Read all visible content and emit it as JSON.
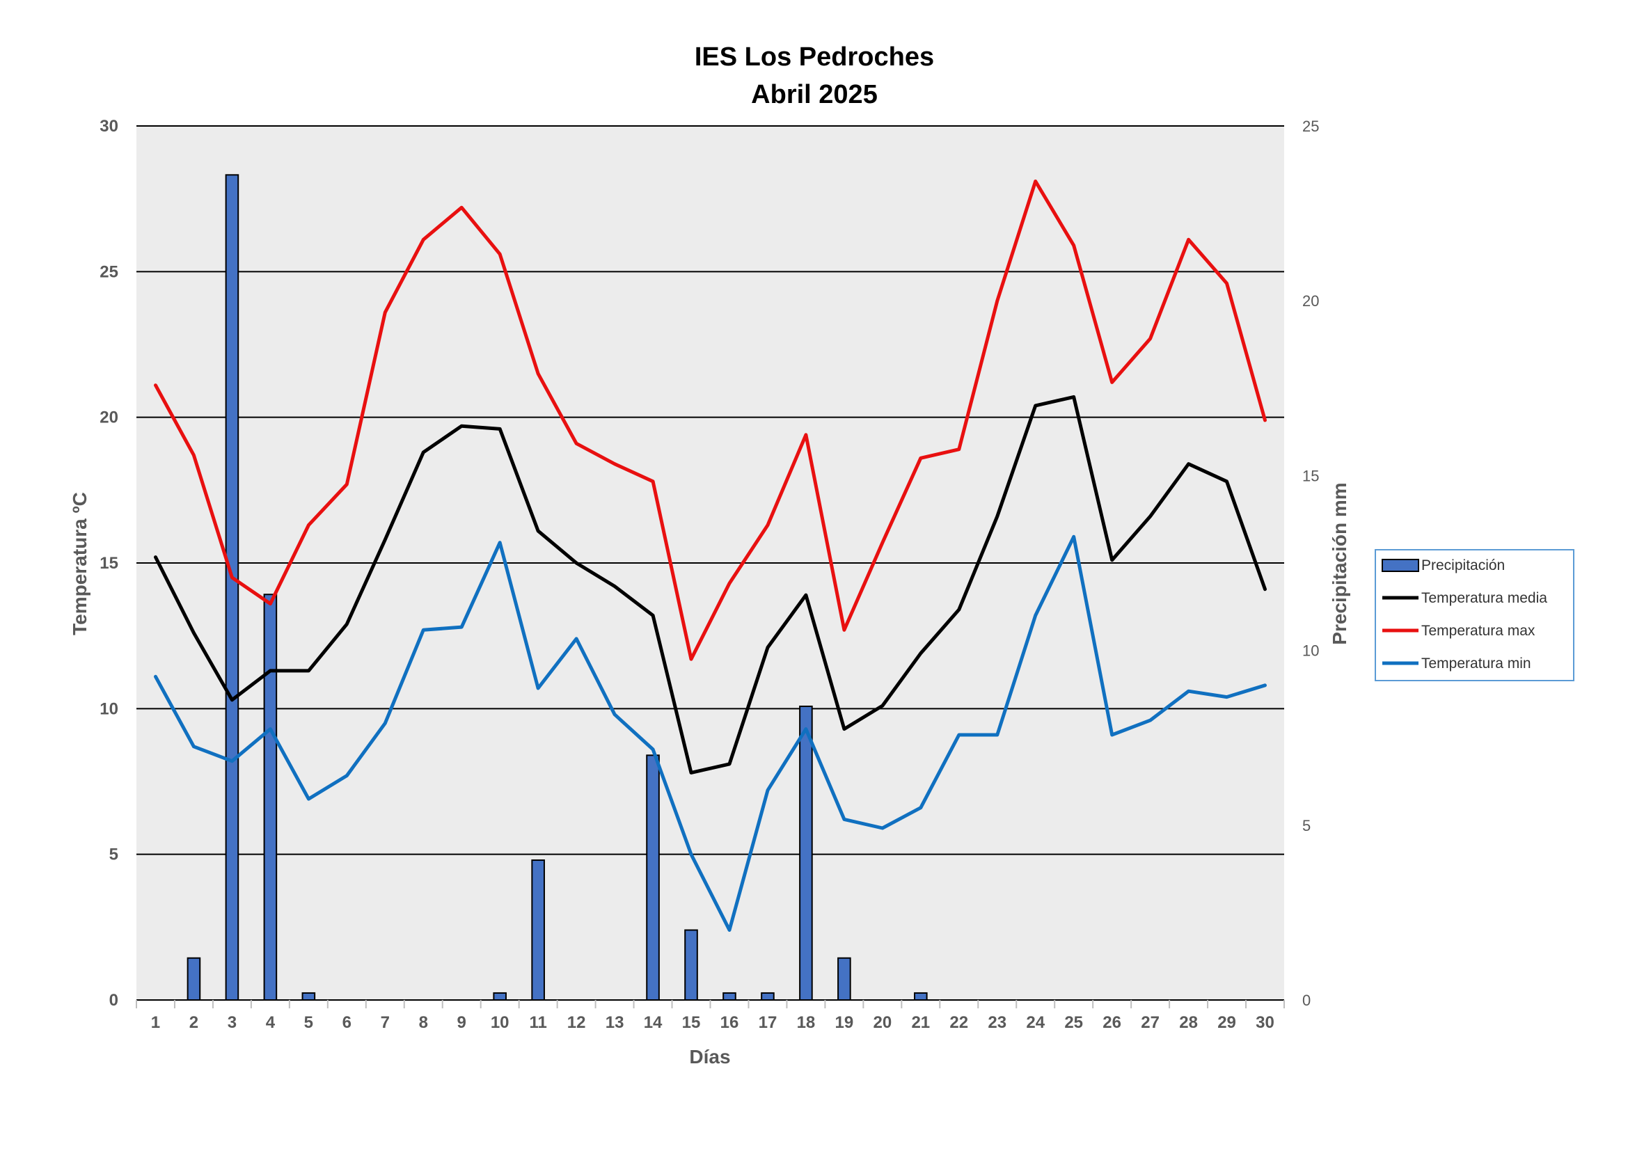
{
  "chart_data": {
    "type": "bar+line",
    "title": "IES Los Pedroches",
    "subtitle": "Abril 2025",
    "xlabel": "Días",
    "ylabel_left": "Temperatura ºC",
    "ylabel_right": "Precipitación mm",
    "ylim_left": [
      0,
      30
    ],
    "ylim_right": [
      0,
      25
    ],
    "yticks_left": [
      "0",
      "5",
      "10",
      "15",
      "20",
      "25",
      "30"
    ],
    "yticks_right": [
      "0",
      "5",
      "10",
      "15",
      "20",
      "25"
    ],
    "grid": "horizontal",
    "legend_position": "right",
    "categories": [
      "1",
      "2",
      "3",
      "4",
      "5",
      "6",
      "7",
      "8",
      "9",
      "10",
      "11",
      "12",
      "13",
      "14",
      "15",
      "16",
      "17",
      "18",
      "19",
      "20",
      "21",
      "22",
      "23",
      "24",
      "25",
      "26",
      "27",
      "28",
      "29",
      "30"
    ],
    "series": [
      {
        "name": "Precipitación",
        "kind": "bar",
        "axis": "right",
        "color": "#4472C4",
        "values": [
          0,
          1.2,
          23.6,
          11.6,
          0.2,
          0,
          0,
          0,
          0,
          0.2,
          4.0,
          0,
          0,
          7.0,
          2.0,
          0.2,
          0.2,
          8.4,
          1.2,
          0,
          0.2,
          0,
          0,
          0,
          0,
          0,
          0,
          0,
          0,
          0
        ]
      },
      {
        "name": "Temperatura media",
        "kind": "line",
        "axis": "left",
        "color": "#000000",
        "values": [
          15.2,
          12.6,
          10.3,
          11.3,
          11.3,
          12.9,
          15.8,
          18.8,
          19.7,
          19.6,
          16.1,
          15.0,
          14.2,
          13.2,
          7.8,
          8.1,
          12.1,
          13.9,
          9.3,
          10.1,
          11.9,
          13.4,
          16.6,
          20.4,
          20.7,
          15.1,
          16.6,
          18.4,
          17.8,
          14.1
        ]
      },
      {
        "name": "Temperatura max",
        "kind": "line",
        "axis": "left",
        "color": "#E81010",
        "values": [
          21.1,
          18.7,
          14.5,
          13.6,
          16.3,
          17.7,
          23.6,
          26.1,
          27.2,
          25.6,
          21.5,
          19.1,
          18.4,
          17.8,
          11.7,
          14.3,
          16.3,
          19.4,
          12.7,
          15.7,
          18.6,
          18.9,
          24.0,
          28.1,
          25.9,
          21.2,
          22.7,
          26.1,
          24.6,
          19.9
        ]
      },
      {
        "name": "Temperatura min",
        "kind": "line",
        "axis": "left",
        "color": "#1070C0",
        "values": [
          11.1,
          8.7,
          8.2,
          9.3,
          6.9,
          7.7,
          9.5,
          12.7,
          12.8,
          15.7,
          10.7,
          12.4,
          9.8,
          8.6,
          5.0,
          2.4,
          7.2,
          9.3,
          6.2,
          5.9,
          6.6,
          9.1,
          9.1,
          13.2,
          15.9,
          9.1,
          9.6,
          10.6,
          10.4,
          10.8
        ]
      }
    ]
  }
}
